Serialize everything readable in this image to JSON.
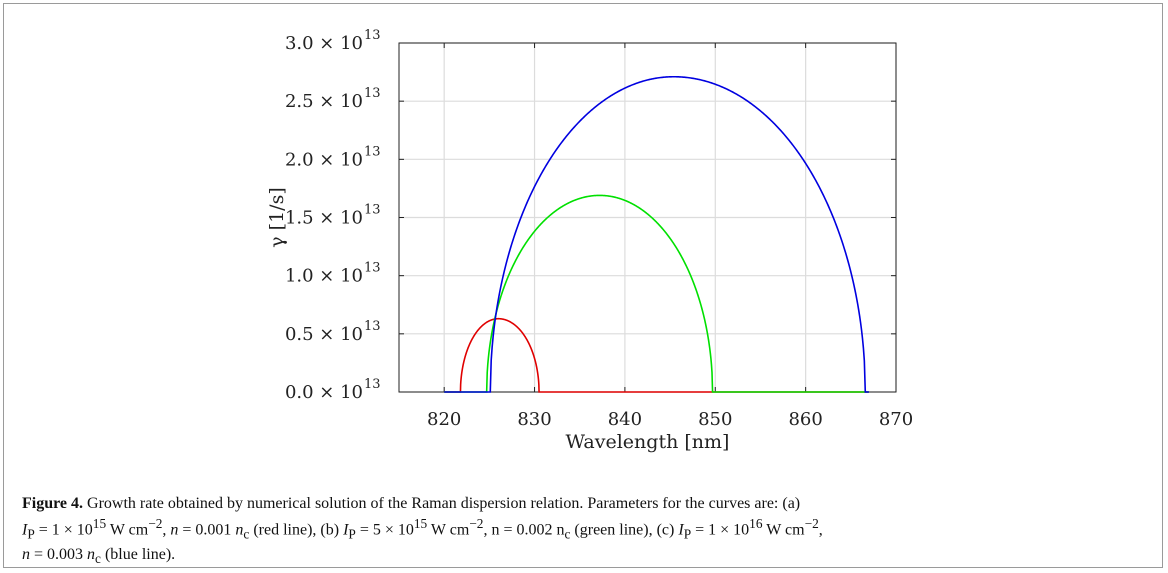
{
  "chart_data": {
    "type": "line",
    "xlabel": "Wavelength [nm]",
    "ylabel": "γ [1/s]",
    "xlim": [
      815,
      870
    ],
    "ylim": [
      0,
      3.0
    ],
    "y_scale_label": "× 10^13",
    "x_ticks": [
      820,
      830,
      840,
      850,
      860,
      870
    ],
    "y_ticks": [
      {
        "value": 0.0,
        "label": "0.0 × 10"
      },
      {
        "value": 0.5,
        "label": "0.5 × 10"
      },
      {
        "value": 1.0,
        "label": "1.0 × 10"
      },
      {
        "value": 1.5,
        "label": "1.5 × 10"
      },
      {
        "value": 2.0,
        "label": "2.0 × 10"
      },
      {
        "value": 2.5,
        "label": "2.5 × 10"
      },
      {
        "value": 3.0,
        "label": "3.0 × 10"
      }
    ],
    "y_tick_exponent": "13",
    "grid": true,
    "series": [
      {
        "color": "#e00000",
        "x_start": 821.8,
        "x_end": 830.5,
        "peak_x": 826.0,
        "peak_y": 0.63,
        "domain": [
          820,
          867
        ]
      },
      {
        "color": "#00e000",
        "x_start": 824.7,
        "x_end": 849.7,
        "peak_x": 837.2,
        "peak_y": 1.69,
        "domain": [
          820,
          867
        ]
      },
      {
        "color": "#0000e0",
        "x_start": 825.1,
        "x_end": 866.6,
        "peak_x": 845.4,
        "peak_y": 2.71,
        "domain": [
          820,
          867
        ]
      }
    ]
  },
  "caption": {
    "label": "Figure 4.",
    "text1": " Growth rate obtained by numerical solution of the Raman dispersion relation. Parameters for the curves are: (a)",
    "a_params": "I",
    "a_rest": "P = 1 × 10",
    "a_exp": "15",
    "a_unit": " W cm",
    "a_unit_exp": "−2",
    "a_n": ", n = 0.001 n",
    "a_sub": "c",
    "a_tail": " (red line), (b) ",
    "b_rest": "I",
    "b_sub_p": "P",
    "b_eq": " = 5 × 10",
    "b_exp": "15",
    "b_unit": " W cm",
    "b_unit_exp": "−2",
    "b_n": ", n = 0.002 n",
    "b_sub": "c",
    "b_tail": " (green line), (c) ",
    "c_i": "I",
    "c_sub_p": "P",
    "c_eq": " = 1 × 10",
    "c_exp": "16",
    "c_unit": " W cm",
    "c_unit_exp": "−2",
    "c_n": ",",
    "line3_n": "n = 0.003 n",
    "line3_sub": "c",
    "line3_tail": " (blue line)."
  }
}
